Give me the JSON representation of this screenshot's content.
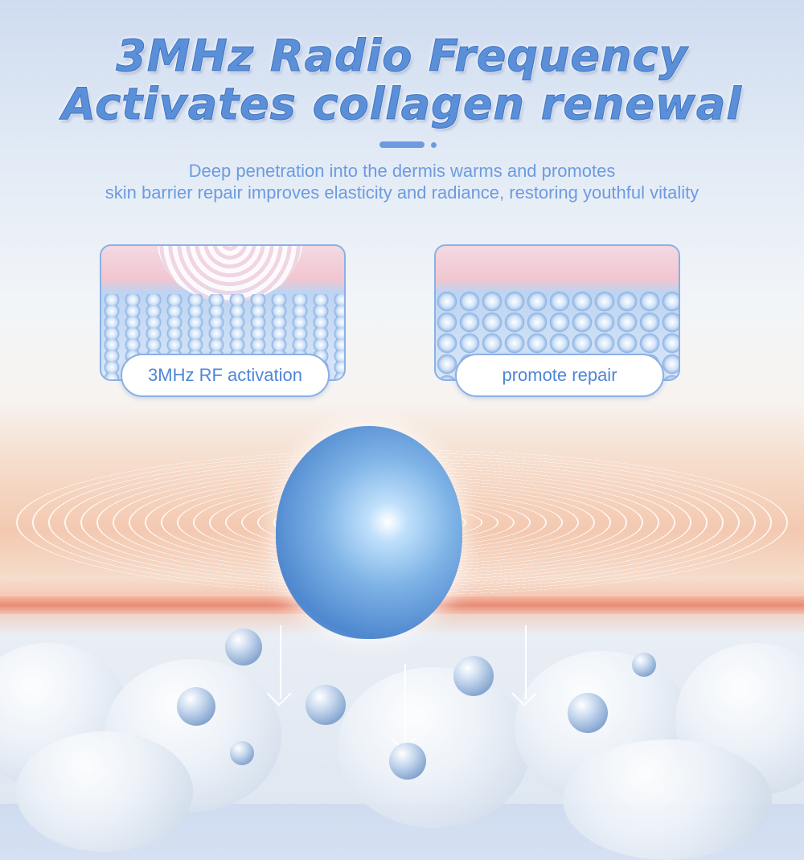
{
  "header": {
    "title_line1": "3MHz Radio Frequency",
    "title_line2": "Activates collagen renewal",
    "subtitle_line1": "Deep penetration into the dermis warms and promotes",
    "subtitle_line2": "skin barrier repair improves elasticity and radiance, restoring youthful vitality"
  },
  "cards": [
    {
      "label": "3MHz RF activation"
    },
    {
      "label": "promote repair"
    }
  ],
  "colors": {
    "accent": "#5b8fd8",
    "skin_band": "#e88c76"
  }
}
